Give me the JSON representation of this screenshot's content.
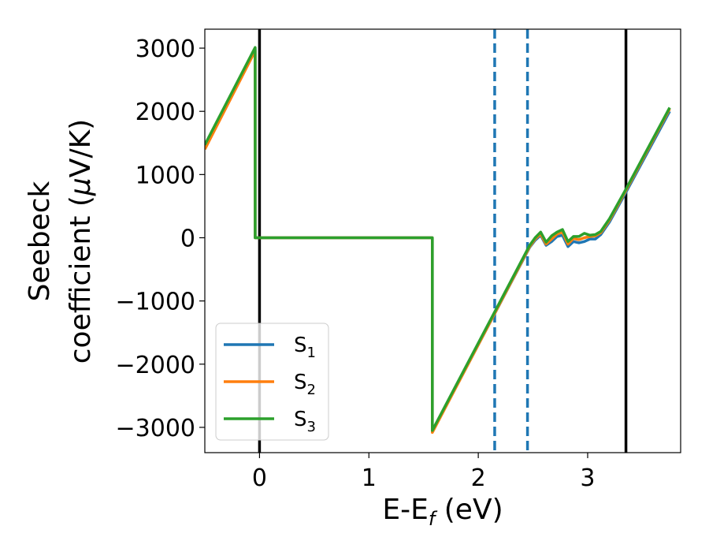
{
  "chart_data": {
    "type": "line",
    "xlabel": "E-E",
    "xlabel_sub": "f",
    "xlabel_unit": " (eV)",
    "ylabel_line1": "Seebeck",
    "ylabel_line2_pre": "coefficient  (",
    "ylabel_mu": "μ",
    "ylabel_line2_post": "V/K)",
    "xlim": [
      -0.5,
      3.85
    ],
    "ylim": [
      -3400,
      3300
    ],
    "xticks": [
      0,
      1,
      2,
      3
    ],
    "xtick_labels": [
      "0",
      "1",
      "2",
      "3"
    ],
    "yticks": [
      3000,
      2000,
      1000,
      0,
      -1000,
      -2000,
      -3000
    ],
    "ytick_labels": [
      "3000",
      "2000",
      "1000",
      "0",
      "−1000",
      "−2000",
      "−3000"
    ],
    "vlines_solid": [
      0.0,
      3.35
    ],
    "vlines_dashed": [
      2.15,
      2.45
    ],
    "vline_solid_color": "#000000",
    "vline_dashed_color": "#1f77b4",
    "legend_position": "lower-left",
    "series": [
      {
        "name": "S1",
        "base": "S",
        "sub": "1",
        "color": "#1f77b4",
        "x": [
          -0.5,
          -0.04,
          -0.04,
          1.58,
          1.58,
          2.47,
          2.52,
          2.57,
          2.62,
          2.67,
          2.72,
          2.77,
          2.82,
          2.87,
          2.92,
          2.97,
          3.02,
          3.07,
          3.12,
          3.2,
          3.35,
          3.75
        ],
        "y": [
          1450,
          2990,
          0,
          0,
          -3070,
          -150,
          -40,
          40,
          -120,
          -60,
          20,
          40,
          -140,
          -60,
          -80,
          -60,
          -20,
          -20,
          50,
          250,
          720,
          2000
        ]
      },
      {
        "name": "S2",
        "base": "S",
        "sub": "2",
        "color": "#ff7f0e",
        "x": [
          -0.5,
          -0.04,
          -0.04,
          1.58,
          1.58,
          2.47,
          2.52,
          2.57,
          2.62,
          2.67,
          2.72,
          2.77,
          2.82,
          2.87,
          2.92,
          2.97,
          3.02,
          3.07,
          3.12,
          3.2,
          3.35,
          3.75
        ],
        "y": [
          1400,
          2960,
          0,
          0,
          -3080,
          -140,
          -20,
          60,
          -100,
          -20,
          60,
          90,
          -100,
          -10,
          -30,
          0,
          20,
          30,
          80,
          280,
          750,
          2040
        ]
      },
      {
        "name": "S3",
        "base": "S",
        "sub": "3",
        "color": "#2ca02c",
        "x": [
          -0.5,
          -0.04,
          -0.04,
          1.58,
          1.58,
          2.47,
          2.52,
          2.57,
          2.62,
          2.67,
          2.72,
          2.77,
          2.82,
          2.87,
          2.92,
          2.97,
          3.02,
          3.07,
          3.12,
          3.2,
          3.35,
          3.75
        ],
        "y": [
          1470,
          3010,
          0,
          0,
          -3050,
          -120,
          0,
          90,
          -70,
          30,
          90,
          130,
          -60,
          20,
          20,
          70,
          40,
          50,
          100,
          300,
          770,
          2060
        ]
      }
    ]
  }
}
